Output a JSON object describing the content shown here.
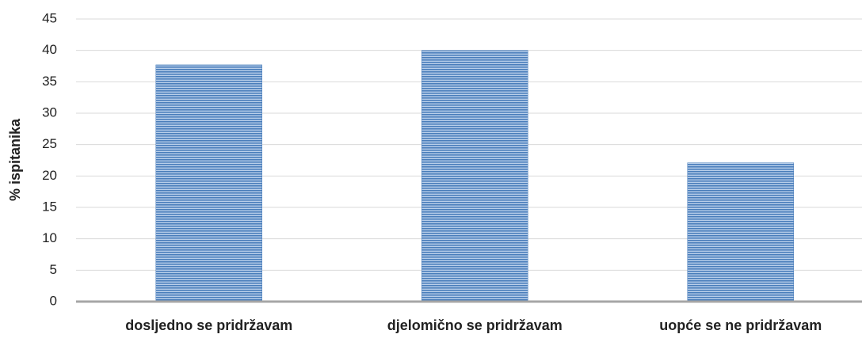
{
  "chart_data": {
    "type": "bar",
    "y_label": "% ispitanika",
    "categories": [
      "dosljedno se pridržavam",
      "djelomično se pridržavam",
      "uopće se ne pridržavam"
    ],
    "values": [
      37.7,
      40,
      22.1
    ],
    "color": "#4a7ebb",
    "ylim": [
      0,
      45
    ],
    "yticks": [
      0,
      5,
      10,
      15,
      20,
      25,
      30,
      35,
      40,
      45
    ],
    "grid": true
  }
}
